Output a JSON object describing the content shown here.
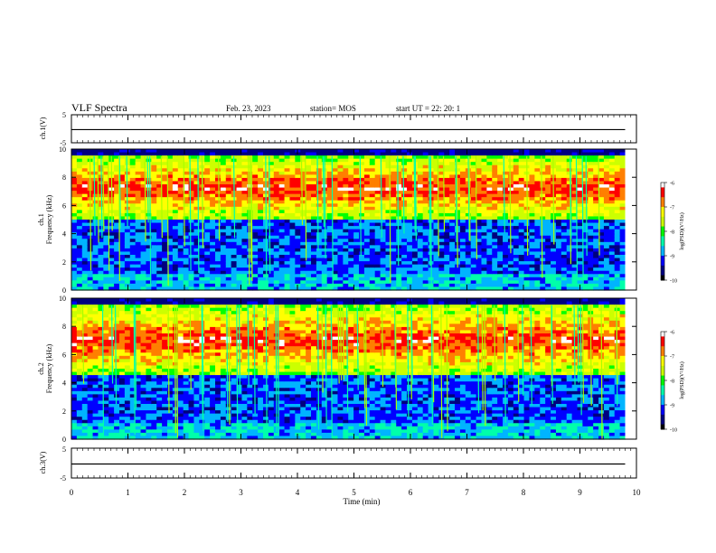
{
  "header": {
    "title": "VLF Spectra",
    "date": "Feb. 23, 2023",
    "station": "station= MOS",
    "start": "start  UT  =   22: 20: 1"
  },
  "colors": {
    "background": "#ffffff",
    "axis": "#000000",
    "colormap": [
      "#000000",
      "#00007f",
      "#0000ff",
      "#00b4ff",
      "#00ffaa",
      "#00ff00",
      "#ccff00",
      "#ffff00",
      "#ff7f00",
      "#ff0000",
      "#ffffff"
    ]
  },
  "chart_data": [
    {
      "id": "ch1-waveform",
      "type": "line",
      "ylabel": "ch.1(V)",
      "ylim": [
        -5,
        5
      ],
      "yticks": [
        "5",
        "-5"
      ],
      "xlim": [
        0,
        10
      ],
      "series": [
        {
          "x": [
            0,
            9.8
          ],
          "values": [
            -0.3,
            -0.3
          ]
        }
      ]
    },
    {
      "id": "ch1-spectrogram",
      "type": "heatmap",
      "ylabel": "ch.1\nFrequency (kHz)",
      "ylim": [
        0,
        10
      ],
      "yticks": [
        "0",
        "2",
        "4",
        "6",
        "8",
        "10"
      ],
      "xlim": [
        0,
        10
      ],
      "data_end": 9.8,
      "emission_band_khz": [
        5,
        9.5
      ],
      "colorbar": {
        "label": "log(PSD)(V²/Hz)",
        "ticks": [
          "-6",
          "-7",
          "-8",
          "-9",
          "-10"
        ],
        "range": [
          -10,
          -6
        ]
      }
    },
    {
      "id": "ch2-spectrogram",
      "type": "heatmap",
      "ylabel": "ch.2\nFrequency (kHz)",
      "ylim": [
        0,
        10
      ],
      "yticks": [
        "0",
        "2",
        "4",
        "6",
        "8",
        "10"
      ],
      "xlim": [
        0,
        10
      ],
      "data_end": 9.8,
      "emission_band_khz": [
        4.5,
        9.5
      ],
      "colorbar": {
        "label": "log(PSD)(V²/Hz)",
        "ticks": [
          "-6",
          "-7",
          "-8",
          "-9",
          "-10"
        ],
        "range": [
          -10,
          -6
        ]
      }
    },
    {
      "id": "ch3-waveform",
      "type": "line",
      "ylabel": "ch.3(V)",
      "ylim": [
        -5,
        5
      ],
      "yticks": [
        "5",
        "-5"
      ],
      "xlim": [
        0,
        10
      ],
      "xticks": [
        "0",
        "1",
        "2",
        "3",
        "4",
        "5",
        "6",
        "7",
        "8",
        "9",
        "10"
      ],
      "xlabel": "Time  (min)",
      "series": [
        {
          "x": [
            0,
            9.8
          ],
          "values": [
            -0.3,
            -0.3
          ]
        }
      ]
    }
  ]
}
